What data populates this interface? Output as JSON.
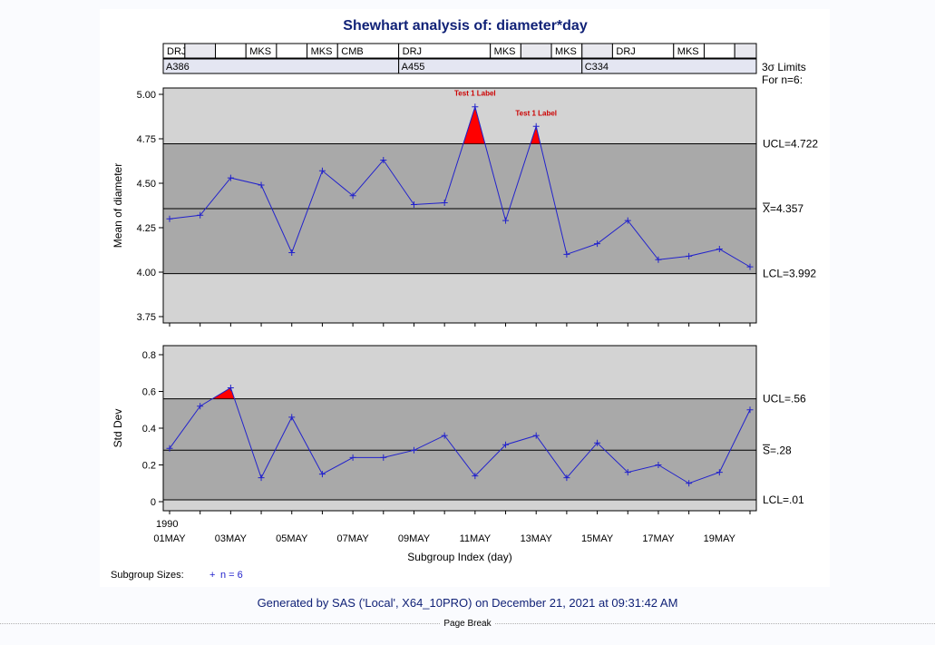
{
  "title": "Shewhart analysis of: diameter*day",
  "footer": "Generated by SAS ('Local', X64_10PRO) on December 21, 2021 at 09:31:42 AM",
  "page_break": "Page Break",
  "limits_header": [
    "3σ Limits",
    "For n=6:"
  ],
  "subgroup_sizes": {
    "label": "Subgroup Sizes:",
    "marker": "+",
    "text": "n = 6"
  },
  "colors": {
    "outer_zone": "#d3d3d3",
    "inner_zone": "#a9a9a9",
    "series": "#2222cc",
    "flag": "#ff0000",
    "title": "#112277"
  },
  "phases": {
    "row1": [
      {
        "from": 1,
        "to": 1,
        "label": "DRJ"
      },
      {
        "from": 2,
        "to": 2,
        "label": ""
      },
      {
        "from": 3,
        "to": 3,
        "label": ""
      },
      {
        "from": 4,
        "to": 4,
        "label": "MKS"
      },
      {
        "from": 5,
        "to": 5,
        "label": ""
      },
      {
        "from": 6,
        "to": 6,
        "label": "MKS"
      },
      {
        "from": 7,
        "to": 8,
        "label": "CMB"
      },
      {
        "from": 9,
        "to": 11,
        "label": "DRJ"
      },
      {
        "from": 12,
        "to": 12,
        "label": "MKS"
      },
      {
        "from": 13,
        "to": 13,
        "label": ""
      },
      {
        "from": 14,
        "to": 14,
        "label": "MKS"
      },
      {
        "from": 15,
        "to": 15,
        "label": ""
      },
      {
        "from": 16,
        "to": 17,
        "label": "DRJ"
      },
      {
        "from": 18,
        "to": 18,
        "label": "MKS"
      },
      {
        "from": 19,
        "to": 19,
        "label": ""
      },
      {
        "from": 20,
        "to": 20,
        "label": ""
      }
    ],
    "row2": [
      {
        "from": 1,
        "to": 8,
        "label": "A386"
      },
      {
        "from": 9,
        "to": 14,
        "label": "A455"
      },
      {
        "from": 15,
        "to": 20,
        "label": "C334"
      }
    ]
  },
  "chart_data": [
    {
      "type": "line",
      "title": "Shewhart analysis of: diameter*day",
      "ylabel": "Mean of diameter",
      "ylim": [
        3.75,
        5.0
      ],
      "yticks": [
        "3.75",
        "4.00",
        "4.25",
        "4.50",
        "4.75",
        "5.00"
      ],
      "limits": {
        "ucl": 4.722,
        "center": 4.357,
        "lcl": 3.992
      },
      "limit_labels": {
        "ucl": "UCL=4.722",
        "center_symbol": "X",
        "center": "=4.357",
        "lcl": "LCL=3.992"
      },
      "x": [
        1,
        2,
        3,
        4,
        5,
        6,
        7,
        8,
        9,
        10,
        11,
        12,
        13,
        14,
        15,
        16,
        17,
        18,
        19,
        20
      ],
      "values": [
        4.3,
        4.32,
        4.53,
        4.49,
        4.11,
        4.57,
        4.43,
        4.63,
        4.38,
        4.39,
        4.93,
        4.29,
        4.82,
        4.1,
        4.16,
        4.29,
        4.07,
        4.09,
        4.13,
        4.03
      ],
      "flags": [
        {
          "index": 11,
          "label": "Test 1 Label"
        },
        {
          "index": 13,
          "label": "Test 1 Label"
        }
      ]
    },
    {
      "type": "line",
      "ylabel": "Std Dev",
      "ylim": [
        0,
        0.8
      ],
      "yticks": [
        "0",
        "0.2",
        "0.4",
        "0.6",
        "0.8"
      ],
      "limits": {
        "ucl": 0.56,
        "center": 0.28,
        "lcl": 0.01
      },
      "limit_labels": {
        "ucl": "UCL=.56",
        "center_symbol": "S",
        "center": "=.28",
        "lcl": "LCL=.01"
      },
      "x": [
        1,
        2,
        3,
        4,
        5,
        6,
        7,
        8,
        9,
        10,
        11,
        12,
        13,
        14,
        15,
        16,
        17,
        18,
        19,
        20
      ],
      "values": [
        0.29,
        0.52,
        0.62,
        0.13,
        0.46,
        0.15,
        0.24,
        0.24,
        0.28,
        0.36,
        0.14,
        0.31,
        0.36,
        0.13,
        0.32,
        0.16,
        0.2,
        0.1,
        0.16,
        0.5
      ],
      "flags": [
        {
          "index": 3,
          "label": ""
        }
      ]
    }
  ],
  "xaxis": {
    "label": "Subgroup Index (day)",
    "year": "1990",
    "ticks": [
      {
        "x": 1,
        "label": "01MAY"
      },
      {
        "x": 3,
        "label": "03MAY"
      },
      {
        "x": 5,
        "label": "05MAY"
      },
      {
        "x": 7,
        "label": "07MAY"
      },
      {
        "x": 9,
        "label": "09MAY"
      },
      {
        "x": 11,
        "label": "11MAY"
      },
      {
        "x": 13,
        "label": "13MAY"
      },
      {
        "x": 15,
        "label": "15MAY"
      },
      {
        "x": 17,
        "label": "17MAY"
      },
      {
        "x": 19,
        "label": "19MAY"
      }
    ]
  }
}
